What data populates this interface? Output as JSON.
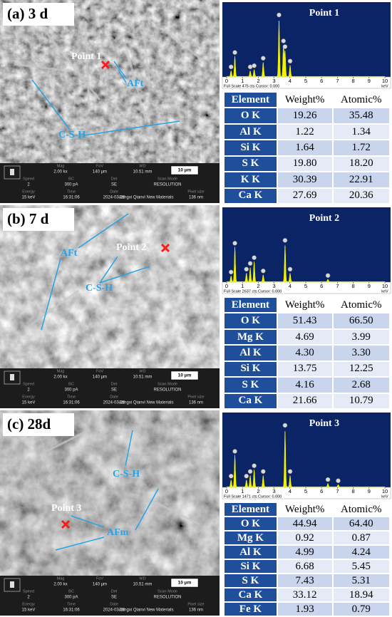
{
  "panels": [
    {
      "label": "(a) 3 d",
      "annotations": [
        "Point 1",
        "AFt",
        "C-S-H"
      ],
      "scale_bar": "10 μm",
      "info": [
        [
          {
            "label": "Mag",
            "value": "2.00 kx"
          },
          {
            "label": "FoV",
            "value": "140 μm"
          },
          {
            "label": "WD",
            "value": "10.51 mm"
          }
        ],
        [
          {
            "label": "Speed",
            "value": "2"
          },
          {
            "label": "BC",
            "value": "300 pA"
          },
          {
            "label": "Det",
            "value": "SE"
          },
          {
            "label": "Scan Mode",
            "value": "RESOLUTION"
          }
        ],
        [
          {
            "label": "Energy",
            "value": "15 keV"
          },
          {
            "label": "Time",
            "value": "16:31:06"
          },
          {
            "label": "Date",
            "value": "2024-03-25"
          },
          {
            "value": "Jiangxi Qianvi New Materials"
          },
          {
            "label": "Pixel size",
            "value": "136 nm"
          }
        ]
      ],
      "spectrum": {
        "title": "Point 1",
        "footer": "Full Scale 475 cts Cursor: 0.000",
        "unit": "keV",
        "ticks": [
          0,
          1,
          2,
          3,
          4,
          5,
          6,
          7,
          8,
          9,
          10
        ]
      },
      "table": {
        "columns": [
          "Element",
          "Weight%",
          "Atomic%"
        ],
        "rows": [
          [
            "O K",
            "19.26",
            "35.48"
          ],
          [
            "Al K",
            "1.22",
            "1.34"
          ],
          [
            "Si K",
            "1.64",
            "1.72"
          ],
          [
            "S K",
            "19.80",
            "18.20"
          ],
          [
            "K K",
            "30.39",
            "22.91"
          ],
          [
            "Ca K",
            "27.69",
            "20.36"
          ]
        ]
      }
    },
    {
      "label": "(b) 7 d",
      "annotations": [
        "AFt",
        "Point 2",
        "C-S-H"
      ],
      "scale_bar": "10 μm",
      "info": [
        [
          {
            "label": "Mag",
            "value": "2.00 kx"
          },
          {
            "label": "FoV",
            "value": "140 μm"
          },
          {
            "label": "WD",
            "value": "10.51 mm"
          }
        ],
        [
          {
            "label": "Speed",
            "value": "2"
          },
          {
            "label": "BC",
            "value": "300 pA"
          },
          {
            "label": "Det",
            "value": "SE"
          },
          {
            "label": "Scan Mode",
            "value": "RESOLUTION"
          }
        ],
        [
          {
            "label": "Energy",
            "value": "15 keV"
          },
          {
            "label": "Time",
            "value": "16:31:06"
          },
          {
            "label": "Date",
            "value": "2024-03-25"
          },
          {
            "value": "Jiangxi Qianvi New Materials"
          },
          {
            "label": "Pixel size",
            "value": "136 nm"
          }
        ]
      ],
      "spectrum": {
        "title": "Point 2",
        "footer": "Full Scale 2637 cts Cursor: 0.000",
        "unit": "keV",
        "ticks": [
          0,
          1,
          2,
          3,
          4,
          5,
          6,
          7,
          8,
          9,
          10
        ]
      },
      "table": {
        "columns": [
          "Element",
          "Weight%",
          "Atomic%"
        ],
        "rows": [
          [
            "O K",
            "51.43",
            "66.50"
          ],
          [
            "Mg K",
            "4.69",
            "3.99"
          ],
          [
            "Al K",
            "4.30",
            "3.30"
          ],
          [
            "Si K",
            "13.75",
            "12.25"
          ],
          [
            "S K",
            "4.16",
            "2.68"
          ],
          [
            "Ca K",
            "21.66",
            "10.79"
          ]
        ]
      }
    },
    {
      "label": "(c) 28d",
      "annotations": [
        "C-S-H",
        "Point 3",
        "AFm"
      ],
      "scale_bar": "10 μm",
      "info": [
        [
          {
            "label": "Mag",
            "value": "2.00 kx"
          },
          {
            "label": "FoV",
            "value": "140 μm"
          },
          {
            "label": "WD",
            "value": "10.51 mm"
          }
        ],
        [
          {
            "label": "Speed",
            "value": "2"
          },
          {
            "label": "BC",
            "value": "300 pA"
          },
          {
            "label": "Det",
            "value": "SE"
          },
          {
            "label": "Scan Mode",
            "value": "RESOLUTION"
          }
        ],
        [
          {
            "label": "Energy",
            "value": "15 keV"
          },
          {
            "label": "Time",
            "value": "16:31:06"
          },
          {
            "label": "Date",
            "value": "2024-03-25"
          },
          {
            "value": "Jiangxi Qianvi New Materials"
          },
          {
            "label": "Pixel size",
            "value": "136 nm"
          }
        ]
      ],
      "spectrum": {
        "title": "Point 3",
        "footer": "Full Scale 1471 cts Cursor: 0.000",
        "unit": "keV",
        "ticks": [
          0,
          1,
          2,
          3,
          4,
          5,
          6,
          7,
          8,
          9,
          10
        ]
      },
      "table": {
        "columns": [
          "Element",
          "Weight%",
          "Atomic%"
        ],
        "rows": [
          [
            "O K",
            "44.94",
            "64.40"
          ],
          [
            "Mg K",
            "0.92",
            "0.87"
          ],
          [
            "Al K",
            "4.99",
            "4.24"
          ],
          [
            "Si K",
            "6.68",
            "5.45"
          ],
          [
            "S K",
            "7.43",
            "5.31"
          ],
          [
            "Ca K",
            "33.12",
            "18.94"
          ],
          [
            "Fe K",
            "1.93",
            "0.79"
          ]
        ]
      }
    }
  ]
}
